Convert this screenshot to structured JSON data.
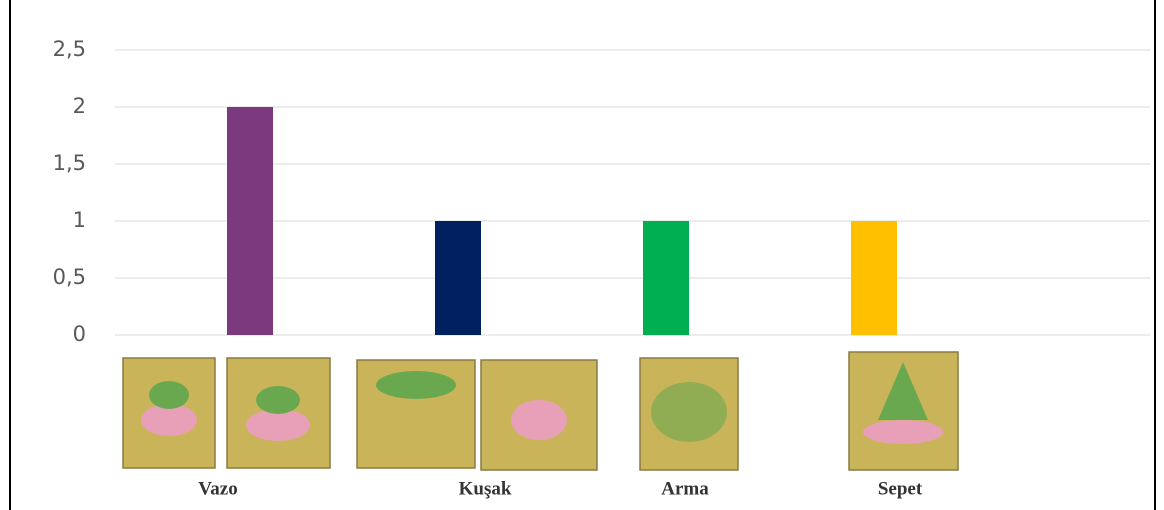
{
  "chart_data": {
    "type": "bar",
    "categories": [
      "Vazo",
      "Kuşak",
      "Arma",
      "Sepet"
    ],
    "values": [
      2,
      1,
      1,
      1
    ],
    "colors": [
      "#7b3a7d",
      "#002060",
      "#00b050",
      "#ffc000"
    ],
    "ylim": [
      0,
      2.5
    ],
    "yticks": [
      0,
      {
        "value": 0.5,
        "label": "0,5"
      },
      1,
      {
        "value": 1.5,
        "label": "1,5"
      },
      2,
      {
        "value": 2.5,
        "label": "2,5"
      }
    ],
    "grid": true
  }
}
